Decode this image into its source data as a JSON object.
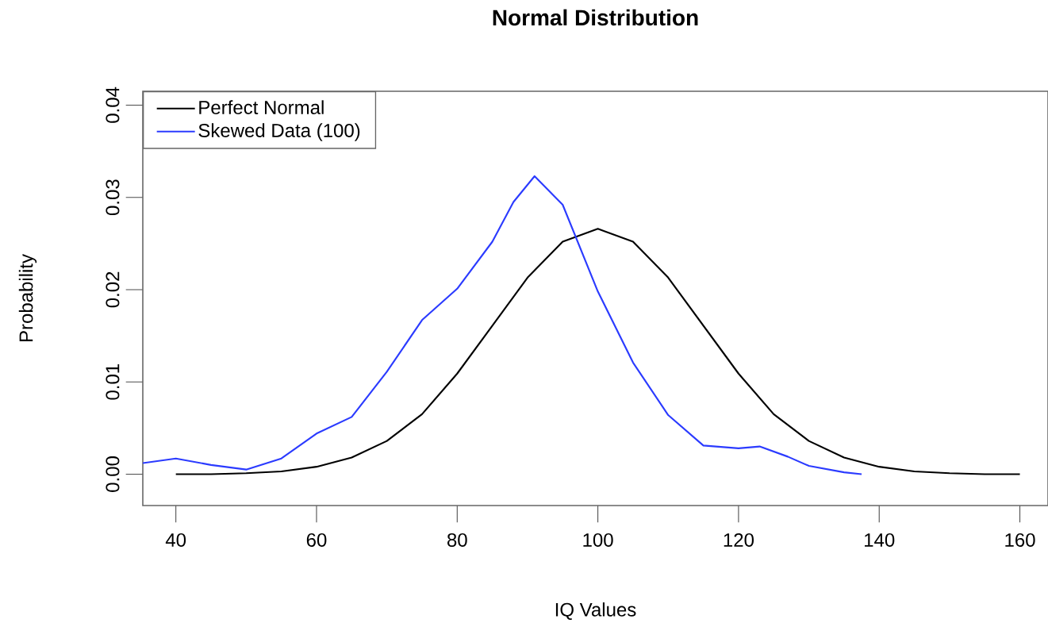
{
  "chart_data": {
    "type": "line",
    "title": "Normal Distribution",
    "xlabel": "IQ Values",
    "ylabel": "Probability",
    "xlim": [
      35.3,
      164
    ],
    "ylim": [
      -0.0034,
      0.0415
    ],
    "xticks": [
      40,
      60,
      80,
      100,
      120,
      140,
      160
    ],
    "yticks": [
      {
        "value": 0,
        "label": "0.00"
      },
      {
        "value": 0.01,
        "label": "0.01"
      },
      {
        "value": 0.02,
        "label": "0.02"
      },
      {
        "value": 0.03,
        "label": "0.03"
      },
      {
        "value": 0.04,
        "label": "0.04"
      }
    ],
    "legend": "top left",
    "series": [
      {
        "name": "Perfect Normal",
        "color": "#000000",
        "x": [
          40,
          45,
          50,
          55,
          60,
          65,
          70,
          75,
          80,
          85,
          90,
          95,
          100,
          105,
          110,
          115,
          120,
          125,
          130,
          135,
          140,
          145,
          150,
          155,
          160
        ],
        "values": [
          0.0,
          0.0,
          0.0001,
          0.0003,
          0.0008,
          0.0018,
          0.0036,
          0.0065,
          0.0109,
          0.0161,
          0.0213,
          0.0252,
          0.0266,
          0.0252,
          0.0213,
          0.0161,
          0.0109,
          0.0065,
          0.0036,
          0.0018,
          0.0008,
          0.0003,
          0.0001,
          0.0,
          0.0
        ]
      },
      {
        "name": "Skewed Data (100)",
        "color": "#2b3bff",
        "x": [
          35.3,
          40,
          45,
          50,
          55,
          60,
          65,
          70,
          75,
          80,
          85,
          88,
          91,
          95,
          100,
          105,
          110,
          115,
          120,
          123,
          127,
          130,
          135,
          137.5
        ],
        "values": [
          0.0012,
          0.0017,
          0.001,
          0.0005,
          0.0017,
          0.0044,
          0.0062,
          0.0111,
          0.0167,
          0.0201,
          0.0252,
          0.0295,
          0.0323,
          0.0292,
          0.0198,
          0.0121,
          0.0064,
          0.0031,
          0.0028,
          0.003,
          0.0019,
          0.0009,
          0.0002,
          0.0
        ]
      }
    ]
  }
}
